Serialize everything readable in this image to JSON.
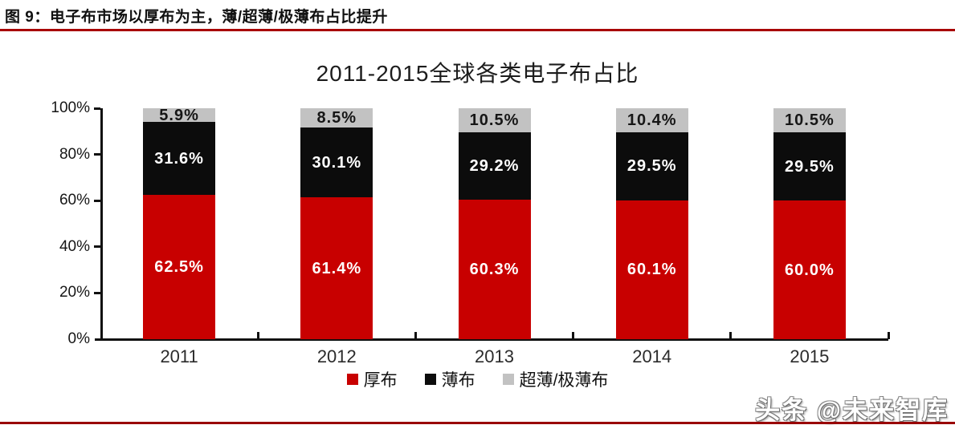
{
  "header": {
    "figure_label": "图 9：电子布市场以厚布为主，薄/超薄/极薄布占比提升"
  },
  "watermark": "头条 @未来智库",
  "chart_data": {
    "type": "bar",
    "stacked": true,
    "title": "2011-2015全球各类电子布占比",
    "categories": [
      "2011",
      "2012",
      "2013",
      "2014",
      "2015"
    ],
    "series": [
      {
        "name": "厚布",
        "color": "#c80000",
        "label_color": "#ffffff",
        "texture": "solid",
        "values": [
          62.5,
          61.4,
          60.3,
          60.1,
          60.0
        ],
        "labels": [
          "62.5%",
          "61.4%",
          "60.3%",
          "60.1%",
          "60.0%"
        ]
      },
      {
        "name": "薄布",
        "color": "#0c0c0c",
        "label_color": "#ffffff",
        "texture": "solid",
        "values": [
          31.6,
          30.1,
          29.2,
          29.5,
          29.5
        ],
        "labels": [
          "31.6%",
          "30.1%",
          "29.2%",
          "29.5%",
          "29.5%"
        ]
      },
      {
        "name": "超薄/极薄布",
        "color": "#c2c2c2",
        "label_color": "#161616",
        "texture": "dots",
        "values": [
          5.9,
          8.5,
          10.5,
          10.4,
          10.5
        ],
        "labels": [
          "5.9%",
          "8.5%",
          "10.5%",
          "10.4%",
          "10.5%"
        ]
      }
    ],
    "ylim": [
      0,
      100
    ],
    "yticks": [
      "0%",
      "20%",
      "40%",
      "60%",
      "80%",
      "100%"
    ],
    "ytick_step": 20,
    "grid": false,
    "legend_position": "bottom",
    "value_suffix": "%"
  }
}
